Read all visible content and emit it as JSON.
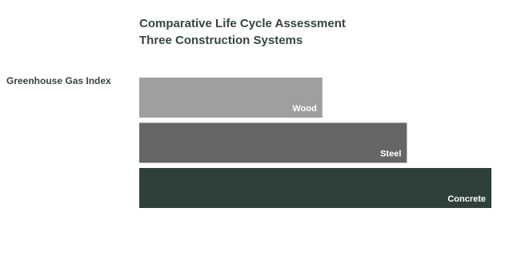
{
  "chart_data": {
    "type": "bar",
    "orientation": "horizontal",
    "title": "Comparative Life Cycle Assessment",
    "subtitle": "Three Construction Systems",
    "y_label": "Greenhouse Gas Index",
    "categories": [
      "Wood",
      "Steel",
      "Concrete"
    ],
    "values": [
      52,
      76,
      100
    ],
    "colors": [
      "#a09e9f",
      "#666667",
      "#2f403b"
    ]
  }
}
